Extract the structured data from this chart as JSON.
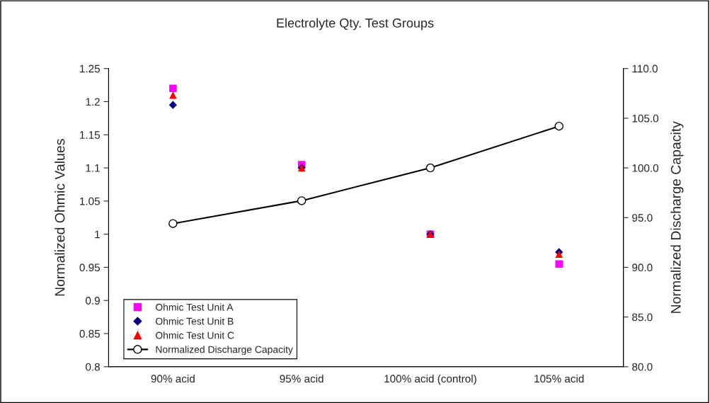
{
  "chart_data": {
    "type": "scatter",
    "title": "Electrolyte Qty. Test Groups",
    "ylabel": "Normalized Ohmic Values",
    "y2label": "Normalized Discharge Capacity",
    "categories": [
      "90% acid",
      "95% acid",
      "100% acid (control)",
      "105% acid"
    ],
    "series": [
      {
        "name": "Ohmic Test Unit A",
        "marker": "square",
        "color": "#ff00ff",
        "values": [
          1.22,
          1.105,
          1.0,
          0.955
        ]
      },
      {
        "name": "Ohmic Test Unit B",
        "marker": "diamond",
        "color": "#000080",
        "values": [
          1.195,
          1.1,
          1.0,
          0.973
        ]
      },
      {
        "name": "Ohmic Test Unit C",
        "marker": "triangle",
        "color": "#ff0000",
        "values": [
          1.21,
          1.1,
          1.0,
          0.97
        ]
      },
      {
        "name": "Normalized Discharge Capacity",
        "type": "line",
        "axis": "y2",
        "marker": "circle",
        "color": "#000000",
        "values": [
          94.4,
          96.7,
          100.0,
          104.2
        ]
      }
    ],
    "ylim": [
      0.8,
      1.25
    ],
    "yticks": [
      0.8,
      0.85,
      0.9,
      0.95,
      1,
      1.05,
      1.1,
      1.15,
      1.2,
      1.25
    ],
    "y2lim": [
      80,
      110
    ],
    "y2ticks": [
      {
        "value": 80,
        "label": "80.0"
      },
      {
        "value": 85,
        "label": "85.0"
      },
      {
        "value": 90,
        "label": "90.0"
      },
      {
        "value": 95,
        "label": "95.0"
      },
      {
        "value": 100,
        "label": "100.0"
      },
      {
        "value": 105,
        "label": "105.0"
      },
      {
        "value": 110,
        "label": "110.0"
      }
    ],
    "grid": false,
    "legend": "bottom left"
  }
}
